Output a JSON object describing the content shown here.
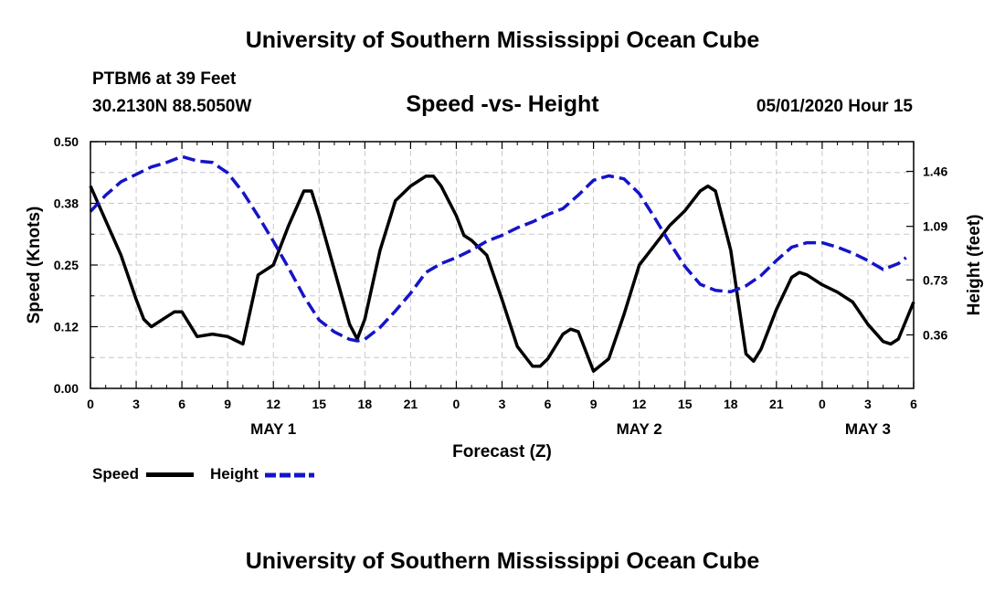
{
  "header": {
    "title": "University of Southern Mississippi Ocean Cube",
    "station": "PTBM6 at 39 Feet",
    "coords": "30.2130N 88.5050W",
    "date": "05/01/2020 Hour 15"
  },
  "footer": {
    "title": "University of Southern Mississippi Ocean Cube"
  },
  "legend": {
    "speed_label": "Speed",
    "height_label": "Height"
  },
  "colors": {
    "speed": "#000000",
    "height": "#1414c8",
    "grid": "#c8c8c8"
  },
  "chart_data": {
    "type": "line",
    "title": "Speed -vs- Height",
    "xlabel": "Forecast (Z)",
    "ylabel": "Speed (Knots)",
    "y2label": "Height (feet)",
    "xlim": [
      0,
      54
    ],
    "ylim": [
      0,
      0.5
    ],
    "y2lim": [
      0,
      1.66
    ],
    "x_ticks": [
      {
        "x": 0,
        "label": "0"
      },
      {
        "x": 3,
        "label": "3"
      },
      {
        "x": 6,
        "label": "6"
      },
      {
        "x": 9,
        "label": "9"
      },
      {
        "x": 12,
        "label": "12"
      },
      {
        "x": 15,
        "label": "15"
      },
      {
        "x": 18,
        "label": "18"
      },
      {
        "x": 21,
        "label": "21"
      },
      {
        "x": 24,
        "label": "0"
      },
      {
        "x": 27,
        "label": "3"
      },
      {
        "x": 30,
        "label": "6"
      },
      {
        "x": 33,
        "label": "9"
      },
      {
        "x": 36,
        "label": "12"
      },
      {
        "x": 39,
        "label": "15"
      },
      {
        "x": 42,
        "label": "18"
      },
      {
        "x": 45,
        "label": "21"
      },
      {
        "x": 48,
        "label": "0"
      },
      {
        "x": 51,
        "label": "3"
      },
      {
        "x": 54,
        "label": "6"
      }
    ],
    "date_labels": [
      {
        "x": 12,
        "label": "MAY 1"
      },
      {
        "x": 36,
        "label": "MAY 2"
      },
      {
        "x": 51,
        "label": "MAY 3"
      }
    ],
    "y_ticks": [
      {
        "v": 0.0,
        "label": "0.00"
      },
      {
        "v": 0.125,
        "label": "0.12"
      },
      {
        "v": 0.25,
        "label": "0.25"
      },
      {
        "v": 0.375,
        "label": "0.38"
      },
      {
        "v": 0.5,
        "label": "0.50"
      }
    ],
    "y2_ticks": [
      {
        "v": 0.36,
        "label": "0.36"
      },
      {
        "v": 0.73,
        "label": "0.73"
      },
      {
        "v": 1.09,
        "label": "1.09"
      },
      {
        "v": 1.46,
        "label": "1.46"
      }
    ],
    "series": [
      {
        "name": "Speed",
        "axis": "left",
        "style": "solid",
        "x": [
          0,
          1,
          2,
          3,
          3.5,
          4,
          5,
          5.5,
          6,
          6.5,
          7,
          8,
          9,
          10,
          10.5,
          11,
          12,
          13,
          14,
          14.5,
          15,
          16,
          17,
          17.5,
          18,
          19,
          20,
          21,
          22,
          22.5,
          23,
          24,
          24.5,
          25,
          26,
          27,
          28,
          29,
          29.5,
          30,
          31,
          31.5,
          32,
          33,
          34,
          35,
          36,
          37,
          38,
          39,
          40,
          40.5,
          41,
          42,
          43,
          43.5,
          44,
          45,
          46,
          46.5,
          47,
          48,
          49,
          50,
          51,
          52,
          52.5,
          53,
          54
        ],
        "values": [
          0.41,
          0.34,
          0.27,
          0.18,
          0.14,
          0.125,
          0.145,
          0.155,
          0.155,
          0.13,
          0.105,
          0.11,
          0.105,
          0.09,
          0.16,
          0.23,
          0.25,
          0.33,
          0.4,
          0.4,
          0.35,
          0.24,
          0.13,
          0.1,
          0.14,
          0.28,
          0.38,
          0.41,
          0.43,
          0.43,
          0.41,
          0.35,
          0.31,
          0.3,
          0.27,
          0.18,
          0.085,
          0.045,
          0.045,
          0.06,
          0.11,
          0.12,
          0.115,
          0.035,
          0.06,
          0.15,
          0.25,
          0.29,
          0.33,
          0.36,
          0.4,
          0.41,
          0.4,
          0.28,
          0.07,
          0.055,
          0.08,
          0.16,
          0.225,
          0.235,
          0.23,
          0.21,
          0.195,
          0.175,
          0.13,
          0.095,
          0.09,
          0.1,
          0.175
        ]
      },
      {
        "name": "Height",
        "axis": "right",
        "style": "dashed",
        "x": [
          0,
          1,
          2,
          3,
          4,
          5,
          6,
          7,
          8,
          9,
          10,
          11,
          12,
          13,
          14,
          15,
          16,
          17,
          17.5,
          18,
          19,
          20,
          21,
          22,
          23,
          24,
          25,
          26,
          27,
          28,
          29,
          30,
          31,
          32,
          33,
          34,
          35,
          36,
          37,
          38,
          39,
          40,
          41,
          42,
          43,
          44,
          45,
          46,
          47,
          48,
          49,
          50,
          51,
          52,
          53,
          53.5
        ],
        "values": [
          1.19,
          1.3,
          1.39,
          1.44,
          1.49,
          1.52,
          1.56,
          1.53,
          1.52,
          1.45,
          1.32,
          1.16,
          0.99,
          0.81,
          0.62,
          0.46,
          0.38,
          0.33,
          0.32,
          0.33,
          0.41,
          0.52,
          0.64,
          0.78,
          0.84,
          0.88,
          0.93,
          0.99,
          1.03,
          1.08,
          1.12,
          1.17,
          1.21,
          1.3,
          1.4,
          1.43,
          1.41,
          1.31,
          1.15,
          0.98,
          0.82,
          0.7,
          0.66,
          0.65,
          0.69,
          0.76,
          0.86,
          0.95,
          0.98,
          0.98,
          0.95,
          0.91,
          0.86,
          0.8,
          0.84,
          0.88
        ]
      }
    ]
  }
}
